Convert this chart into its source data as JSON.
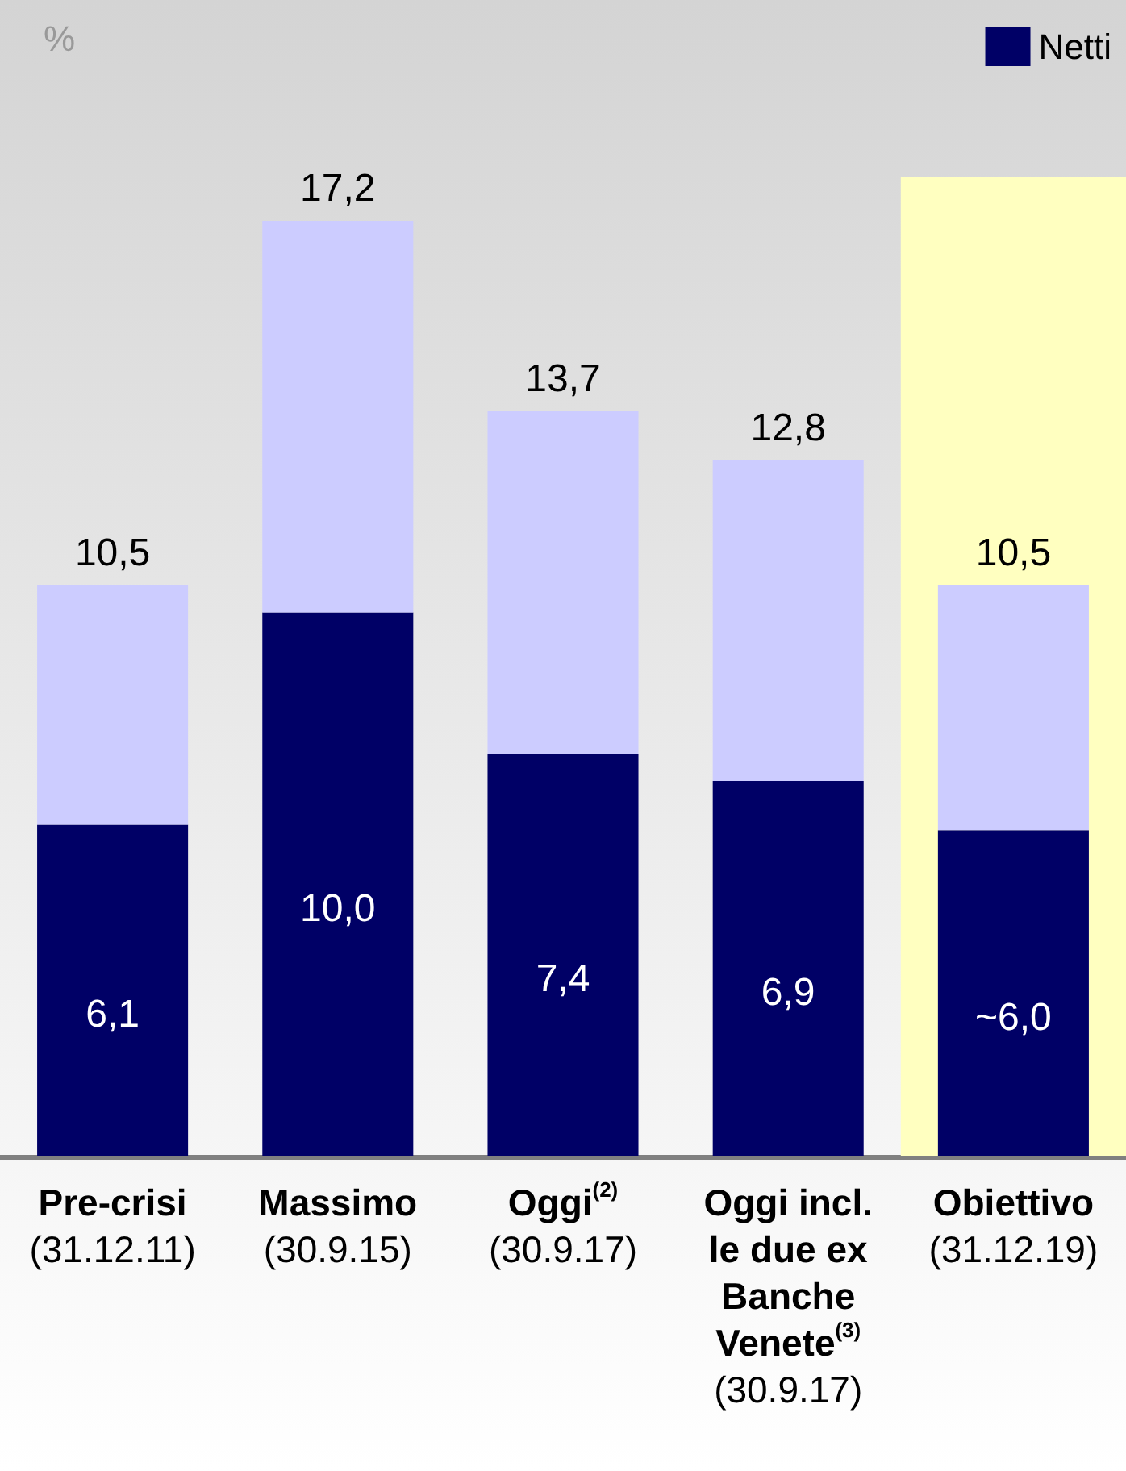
{
  "chart_data": {
    "type": "bar",
    "stacked": true,
    "ylabel": "%",
    "legend": "top right",
    "categories": [
      "Pre-crisi\n(31.12.11)",
      "Massimo\n(30.9.15)",
      "Oggi$^{(2)}$\n(30.9.17)",
      "Oggi incl.\nle due ex\nBanche\nVenete$^{(3)}$\n(30.9.17)",
      "Obiettivo\n(31.12.19)"
    ],
    "series": [
      {
        "name": "Netti",
        "color": "#000066",
        "values": [
          6.1,
          10.0,
          7.4,
          6.9,
          6.0
        ],
        "value_labels": [
          "6,1",
          "10,0",
          "7,4",
          "6,9",
          "~6,0"
        ]
      },
      {
        "color": "#ccccff",
        "values": [
          4.4,
          7.2,
          6.3,
          5.9,
          4.5
        ]
      }
    ],
    "totals": [
      "10,5",
      "17,2",
      "13,7",
      "12,8",
      "10,5"
    ],
    "bands": [
      {
        "axis": "x",
        "from": "Obiettivo\n(31.12.19)",
        "to": "Obiettivo\n(31.12.19)",
        "color": "#ffffc0"
      }
    ]
  }
}
